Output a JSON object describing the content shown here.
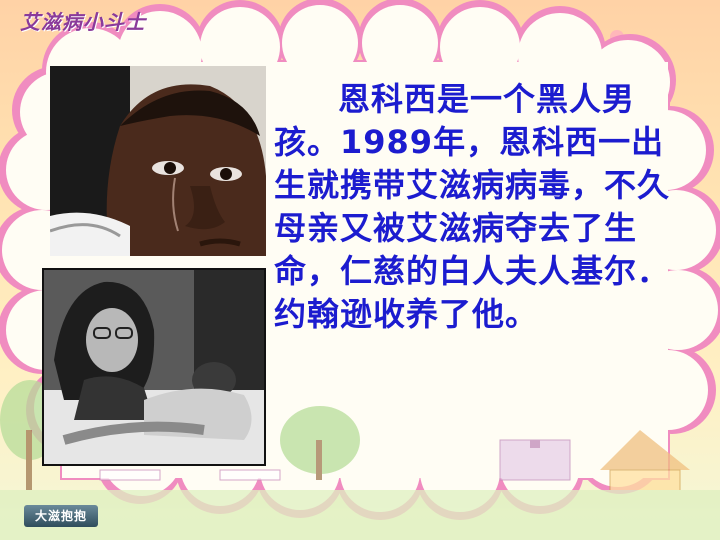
{
  "header": {
    "title": "艾滋病小斗士"
  },
  "content": {
    "paragraph": "恩科西是一个黑人男孩。1989年，恩科西一出生就携带艾滋病病毒，不久母亲又被艾滋病夺去了生命，仁慈的白人夫人基尔．约翰逊收养了他。"
  },
  "images": {
    "top_photo": "photo-crying-boy",
    "bottom_photo": "photo-woman-with-boy-in-bed"
  },
  "footer": {
    "logo_text": "大滋抱抱"
  },
  "colors": {
    "title": "#8a3a9a",
    "body_text": "#1c1ccf",
    "background": "#ffe3b2",
    "cloud_fill": "#fffdf4",
    "cloud_border": "#f08cc0"
  }
}
